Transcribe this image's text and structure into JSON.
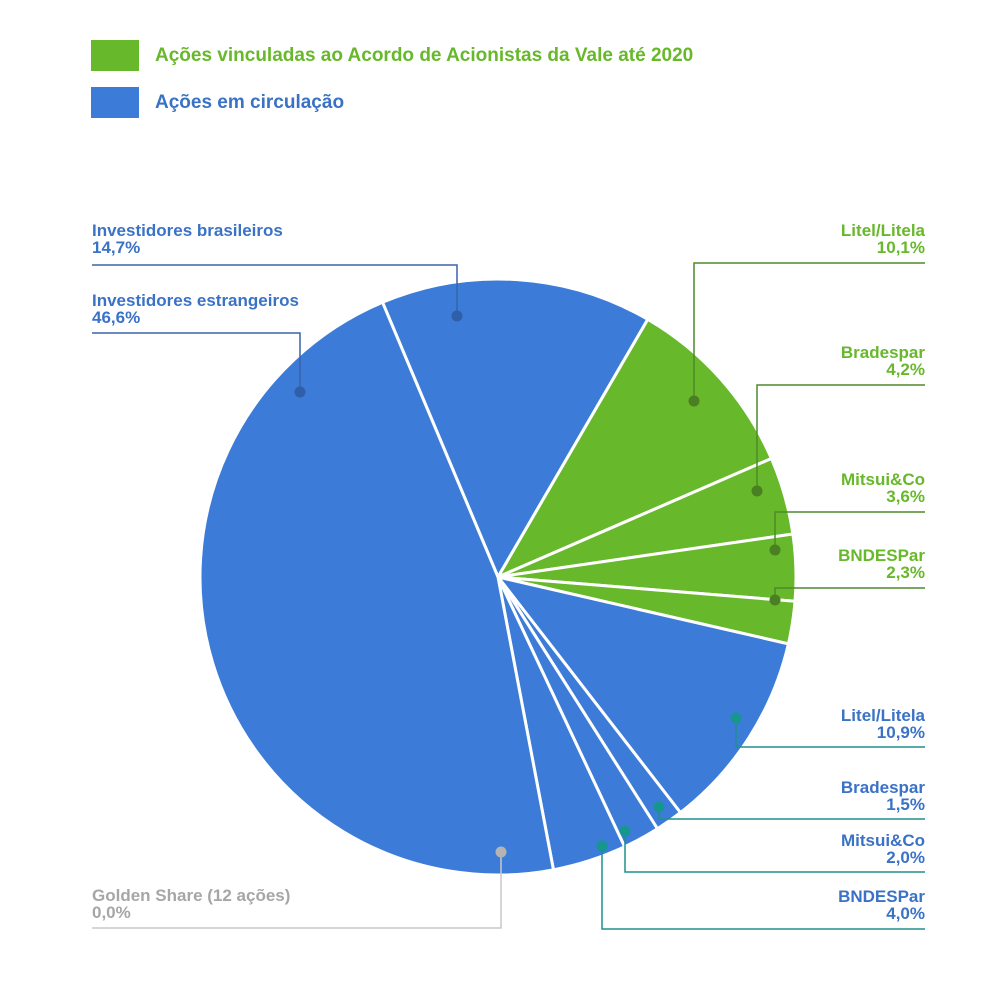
{
  "chart_data": {
    "type": "pie",
    "title": "",
    "legend": [
      {
        "label": "Ações vinculadas ao Acordo de Acionistas da Vale até 2020",
        "color": "#67b82b"
      },
      {
        "label": "Ações em circulação",
        "color": "#3c7cd8"
      }
    ],
    "slices": [
      {
        "name": "Investidores brasileiros",
        "value": 14.7,
        "display": "14,7%",
        "group": "Ações em circulação",
        "color": "#3c7cd8"
      },
      {
        "name": "Litel/Litela",
        "value": 10.1,
        "display": "10,1%",
        "group": "Ações vinculadas ao Acordo de Acionistas da Vale até 2020",
        "color": "#67b82b"
      },
      {
        "name": "Bradespar",
        "value": 4.2,
        "display": "4,2%",
        "group": "Ações vinculadas ao Acordo de Acionistas da Vale até 2020",
        "color": "#67b82b"
      },
      {
        "name": "Mitsui&Co",
        "value": 3.6,
        "display": "3,6%",
        "group": "Ações vinculadas ao Acordo de Acionistas da Vale até 2020",
        "color": "#67b82b"
      },
      {
        "name": "BNDESPar",
        "value": 2.3,
        "display": "2,3%",
        "group": "Ações vinculadas ao Acordo de Acionistas da Vale até 2020",
        "color": "#67b82b"
      },
      {
        "name": "Litel/Litela",
        "value": 10.9,
        "display": "10,9%",
        "group": "Ações em circulação",
        "color": "#3c7cd8"
      },
      {
        "name": "Bradespar",
        "value": 1.5,
        "display": "1,5%",
        "group": "Ações em circulação",
        "color": "#3c7cd8"
      },
      {
        "name": "Mitsui&Co",
        "value": 2.0,
        "display": "2,0%",
        "group": "Ações em circulação",
        "color": "#3c7cd8"
      },
      {
        "name": "BNDESPar",
        "value": 4.0,
        "display": "4,0%",
        "group": "Ações em circulação",
        "color": "#3c7cd8"
      },
      {
        "name": "Golden Share (12 ações)",
        "value": 0.0,
        "display": "0,0%",
        "group": "Ações em circulação",
        "color": "#aaaaaa"
      },
      {
        "name": "Investidores estrangeiros",
        "value": 46.6,
        "display": "46,6%",
        "group": "Ações em circulação",
        "color": "#3c7cd8"
      }
    ]
  },
  "legend": {
    "items": [
      {
        "label": "Ações vinculadas ao Acordo de Acionistas da Vale até 2020"
      },
      {
        "label": "Ações em circulação"
      }
    ]
  },
  "labels": {
    "brasileiros": {
      "name": "Investidores brasileiros",
      "value": "14,7%"
    },
    "estrangeiros": {
      "name": "Investidores estrangeiros",
      "value": "46,6%"
    },
    "litel_green": {
      "name": "Litel/Litela",
      "value": "10,1%"
    },
    "bradespar_green": {
      "name": "Bradespar",
      "value": "4,2%"
    },
    "mitsui_green": {
      "name": "Mitsui&Co",
      "value": "3,6%"
    },
    "bndes_green": {
      "name": "BNDESPar",
      "value": "2,3%"
    },
    "litel_blue": {
      "name": "Litel/Litela",
      "value": "10,9%"
    },
    "bradespar_blue": {
      "name": "Bradespar",
      "value": "1,5%"
    },
    "mitsui_blue": {
      "name": "Mitsui&Co",
      "value": "2,0%"
    },
    "bndes_blue": {
      "name": "BNDESPar",
      "value": "4,0%"
    },
    "golden": {
      "name": "Golden Share (12 ações)",
      "value": "0,0%"
    }
  },
  "colors": {
    "green": "#67b82b",
    "blue": "#3c7cd8",
    "green_text": "#67b82b",
    "blue_text": "#3a72c6",
    "grey_text": "#a6a6a6",
    "green_leader": "#4f8a2a",
    "blue_leader": "#3a63a8",
    "teal_leader": "#1f8f8f"
  }
}
